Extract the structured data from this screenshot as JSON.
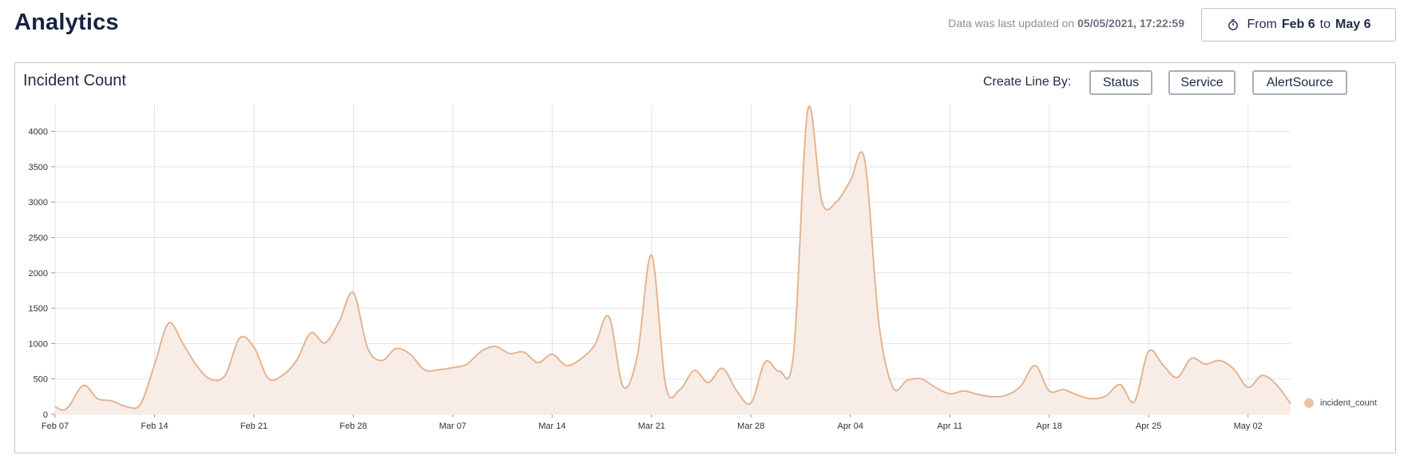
{
  "header": {
    "title": "Analytics",
    "updated_prefix": "Data was last updated on ",
    "updated_value": "05/05/2021, 17:22:59",
    "range_icon": "stopwatch-icon",
    "range_from_label": "From ",
    "range_from": "Feb 6",
    "range_to_label": " to ",
    "range_to": "May 6"
  },
  "card": {
    "title": "Incident Count",
    "line_by_label": "Create Line By:",
    "buttons": [
      "Status",
      "Service",
      "AlertSource"
    ]
  },
  "colors": {
    "series_line": "#e5b48f",
    "series_fill": "#f8ede6",
    "grid": "#e3e3e3",
    "legend_dot": "#e8c3a6"
  },
  "chart_data": {
    "type": "area",
    "title": "",
    "xlabel": "",
    "ylabel": "",
    "x_ticks": [
      "Feb 07",
      "Feb 14",
      "Feb 21",
      "Feb 28",
      "Mar 07",
      "Mar 14",
      "Mar 21",
      "Mar 28",
      "Apr 04",
      "Apr 11",
      "Apr 18",
      "Apr 25",
      "May 02"
    ],
    "y_ticks": [
      0,
      500,
      1000,
      1500,
      2000,
      2500,
      3000,
      3500,
      4000
    ],
    "ylim": [
      0,
      4300
    ],
    "xlim": [
      "2021-02-07",
      "2021-05-05"
    ],
    "grid": true,
    "legend_position": "right",
    "series": [
      {
        "name": "incident_count",
        "points": [
          [
            "2021-02-07",
            110
          ],
          [
            "2021-02-07T12:00",
            60
          ],
          [
            "2021-02-08",
            120
          ],
          [
            "2021-02-09",
            410
          ],
          [
            "2021-02-10",
            220
          ],
          [
            "2021-02-11",
            190
          ],
          [
            "2021-02-12",
            110
          ],
          [
            "2021-02-13",
            140
          ],
          [
            "2021-02-14",
            700
          ],
          [
            "2021-02-15",
            1290
          ],
          [
            "2021-02-16",
            1000
          ],
          [
            "2021-02-17",
            680
          ],
          [
            "2021-02-18",
            490
          ],
          [
            "2021-02-19",
            560
          ],
          [
            "2021-02-20",
            1080
          ],
          [
            "2021-02-21",
            950
          ],
          [
            "2021-02-22",
            510
          ],
          [
            "2021-02-23",
            550
          ],
          [
            "2021-02-24",
            760
          ],
          [
            "2021-02-25",
            1150
          ],
          [
            "2021-02-26",
            1010
          ],
          [
            "2021-02-27",
            1310
          ],
          [
            "2021-02-28",
            1720
          ],
          [
            "2021-03-01",
            940
          ],
          [
            "2021-03-02",
            760
          ],
          [
            "2021-03-03",
            930
          ],
          [
            "2021-03-04",
            850
          ],
          [
            "2021-03-05",
            630
          ],
          [
            "2021-03-06",
            630
          ],
          [
            "2021-03-07",
            660
          ],
          [
            "2021-03-08",
            710
          ],
          [
            "2021-03-09",
            890
          ],
          [
            "2021-03-10",
            960
          ],
          [
            "2021-03-11",
            860
          ],
          [
            "2021-03-12",
            880
          ],
          [
            "2021-03-13",
            730
          ],
          [
            "2021-03-14",
            850
          ],
          [
            "2021-03-15",
            690
          ],
          [
            "2021-03-16",
            780
          ],
          [
            "2021-03-17",
            980
          ],
          [
            "2021-03-18",
            1380
          ],
          [
            "2021-03-19",
            390
          ],
          [
            "2021-03-20",
            830
          ],
          [
            "2021-03-21",
            2250
          ],
          [
            "2021-03-22",
            400
          ],
          [
            "2021-03-23",
            350
          ],
          [
            "2021-03-24",
            620
          ],
          [
            "2021-03-25",
            450
          ],
          [
            "2021-03-26",
            650
          ],
          [
            "2021-03-27",
            330
          ],
          [
            "2021-03-28",
            160
          ],
          [
            "2021-03-29",
            740
          ],
          [
            "2021-03-30",
            610
          ],
          [
            "2021-03-31",
            850
          ],
          [
            "2021-04-01",
            4300
          ],
          [
            "2021-04-02",
            3000
          ],
          [
            "2021-04-03",
            3000
          ],
          [
            "2021-04-04",
            3300
          ],
          [
            "2021-04-05",
            3600
          ],
          [
            "2021-04-06",
            1300
          ],
          [
            "2021-04-07",
            380
          ],
          [
            "2021-04-08",
            480
          ],
          [
            "2021-04-09",
            500
          ],
          [
            "2021-04-10",
            380
          ],
          [
            "2021-04-11",
            290
          ],
          [
            "2021-04-12",
            330
          ],
          [
            "2021-04-13",
            280
          ],
          [
            "2021-04-14",
            250
          ],
          [
            "2021-04-15",
            270
          ],
          [
            "2021-04-16",
            400
          ],
          [
            "2021-04-17",
            690
          ],
          [
            "2021-04-18",
            330
          ],
          [
            "2021-04-19",
            350
          ],
          [
            "2021-04-20",
            270
          ],
          [
            "2021-04-21",
            220
          ],
          [
            "2021-04-22",
            260
          ],
          [
            "2021-04-23",
            420
          ],
          [
            "2021-04-24",
            180
          ],
          [
            "2021-04-25",
            890
          ],
          [
            "2021-04-26",
            700
          ],
          [
            "2021-04-27",
            520
          ],
          [
            "2021-04-28",
            790
          ],
          [
            "2021-04-29",
            710
          ],
          [
            "2021-04-30",
            760
          ],
          [
            "2021-05-01",
            640
          ],
          [
            "2021-05-02",
            380
          ],
          [
            "2021-05-03",
            550
          ],
          [
            "2021-05-04",
            420
          ],
          [
            "2021-05-05",
            150
          ]
        ]
      }
    ]
  }
}
